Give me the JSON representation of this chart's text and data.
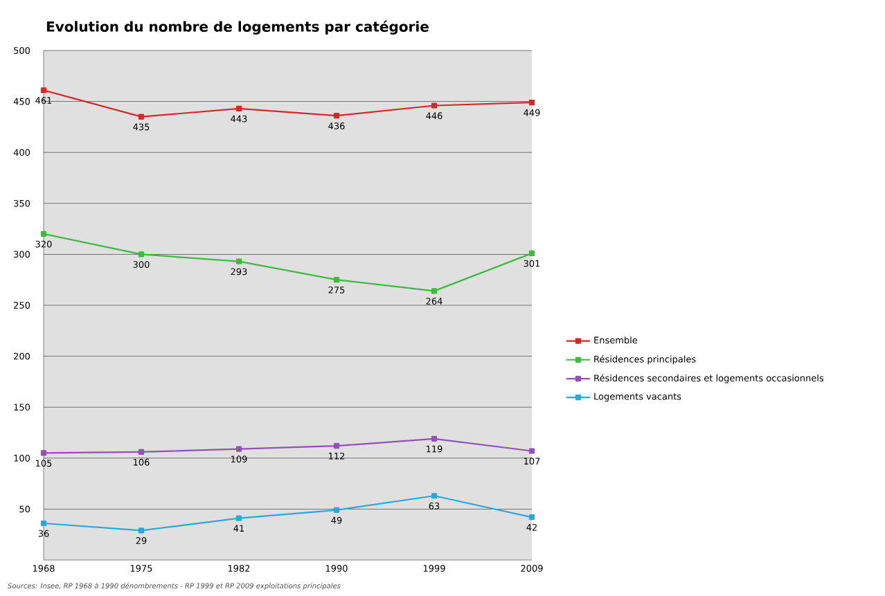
{
  "chart_data": {
    "type": "line",
    "title": "Evolution du nombre de logements par catégorie",
    "categories": [
      "1968",
      "1975",
      "1982",
      "1990",
      "1999",
      "2009"
    ],
    "series": [
      {
        "name": "Ensemble",
        "color": "#d62828",
        "values": [
          461,
          435,
          443,
          436,
          446,
          449
        ]
      },
      {
        "name": "Résidences  principales",
        "color": "#3dbb3d",
        "values": [
          320,
          300,
          293,
          275,
          264,
          301
        ]
      },
      {
        "name": "Résidences secondaires et logements occasionnels",
        "color": "#9450b8",
        "values": [
          105,
          106,
          109,
          112,
          119,
          107
        ]
      },
      {
        "name": "Logements vacants",
        "color": "#27a9dc",
        "values": [
          36,
          29,
          41,
          49,
          63,
          42
        ]
      }
    ],
    "ylim": [
      0,
      500
    ],
    "yticks": [
      50,
      100,
      150,
      200,
      250,
      300,
      350,
      400,
      450,
      500
    ],
    "grid": "y",
    "legend": "right",
    "marker": "square",
    "line_style": "solid",
    "data_labels": true,
    "annotations": [
      "Sources: Insee, RP 1968 à 1990 dénombrements - RP 1999 et RP 2009 exploitations principales"
    ]
  }
}
